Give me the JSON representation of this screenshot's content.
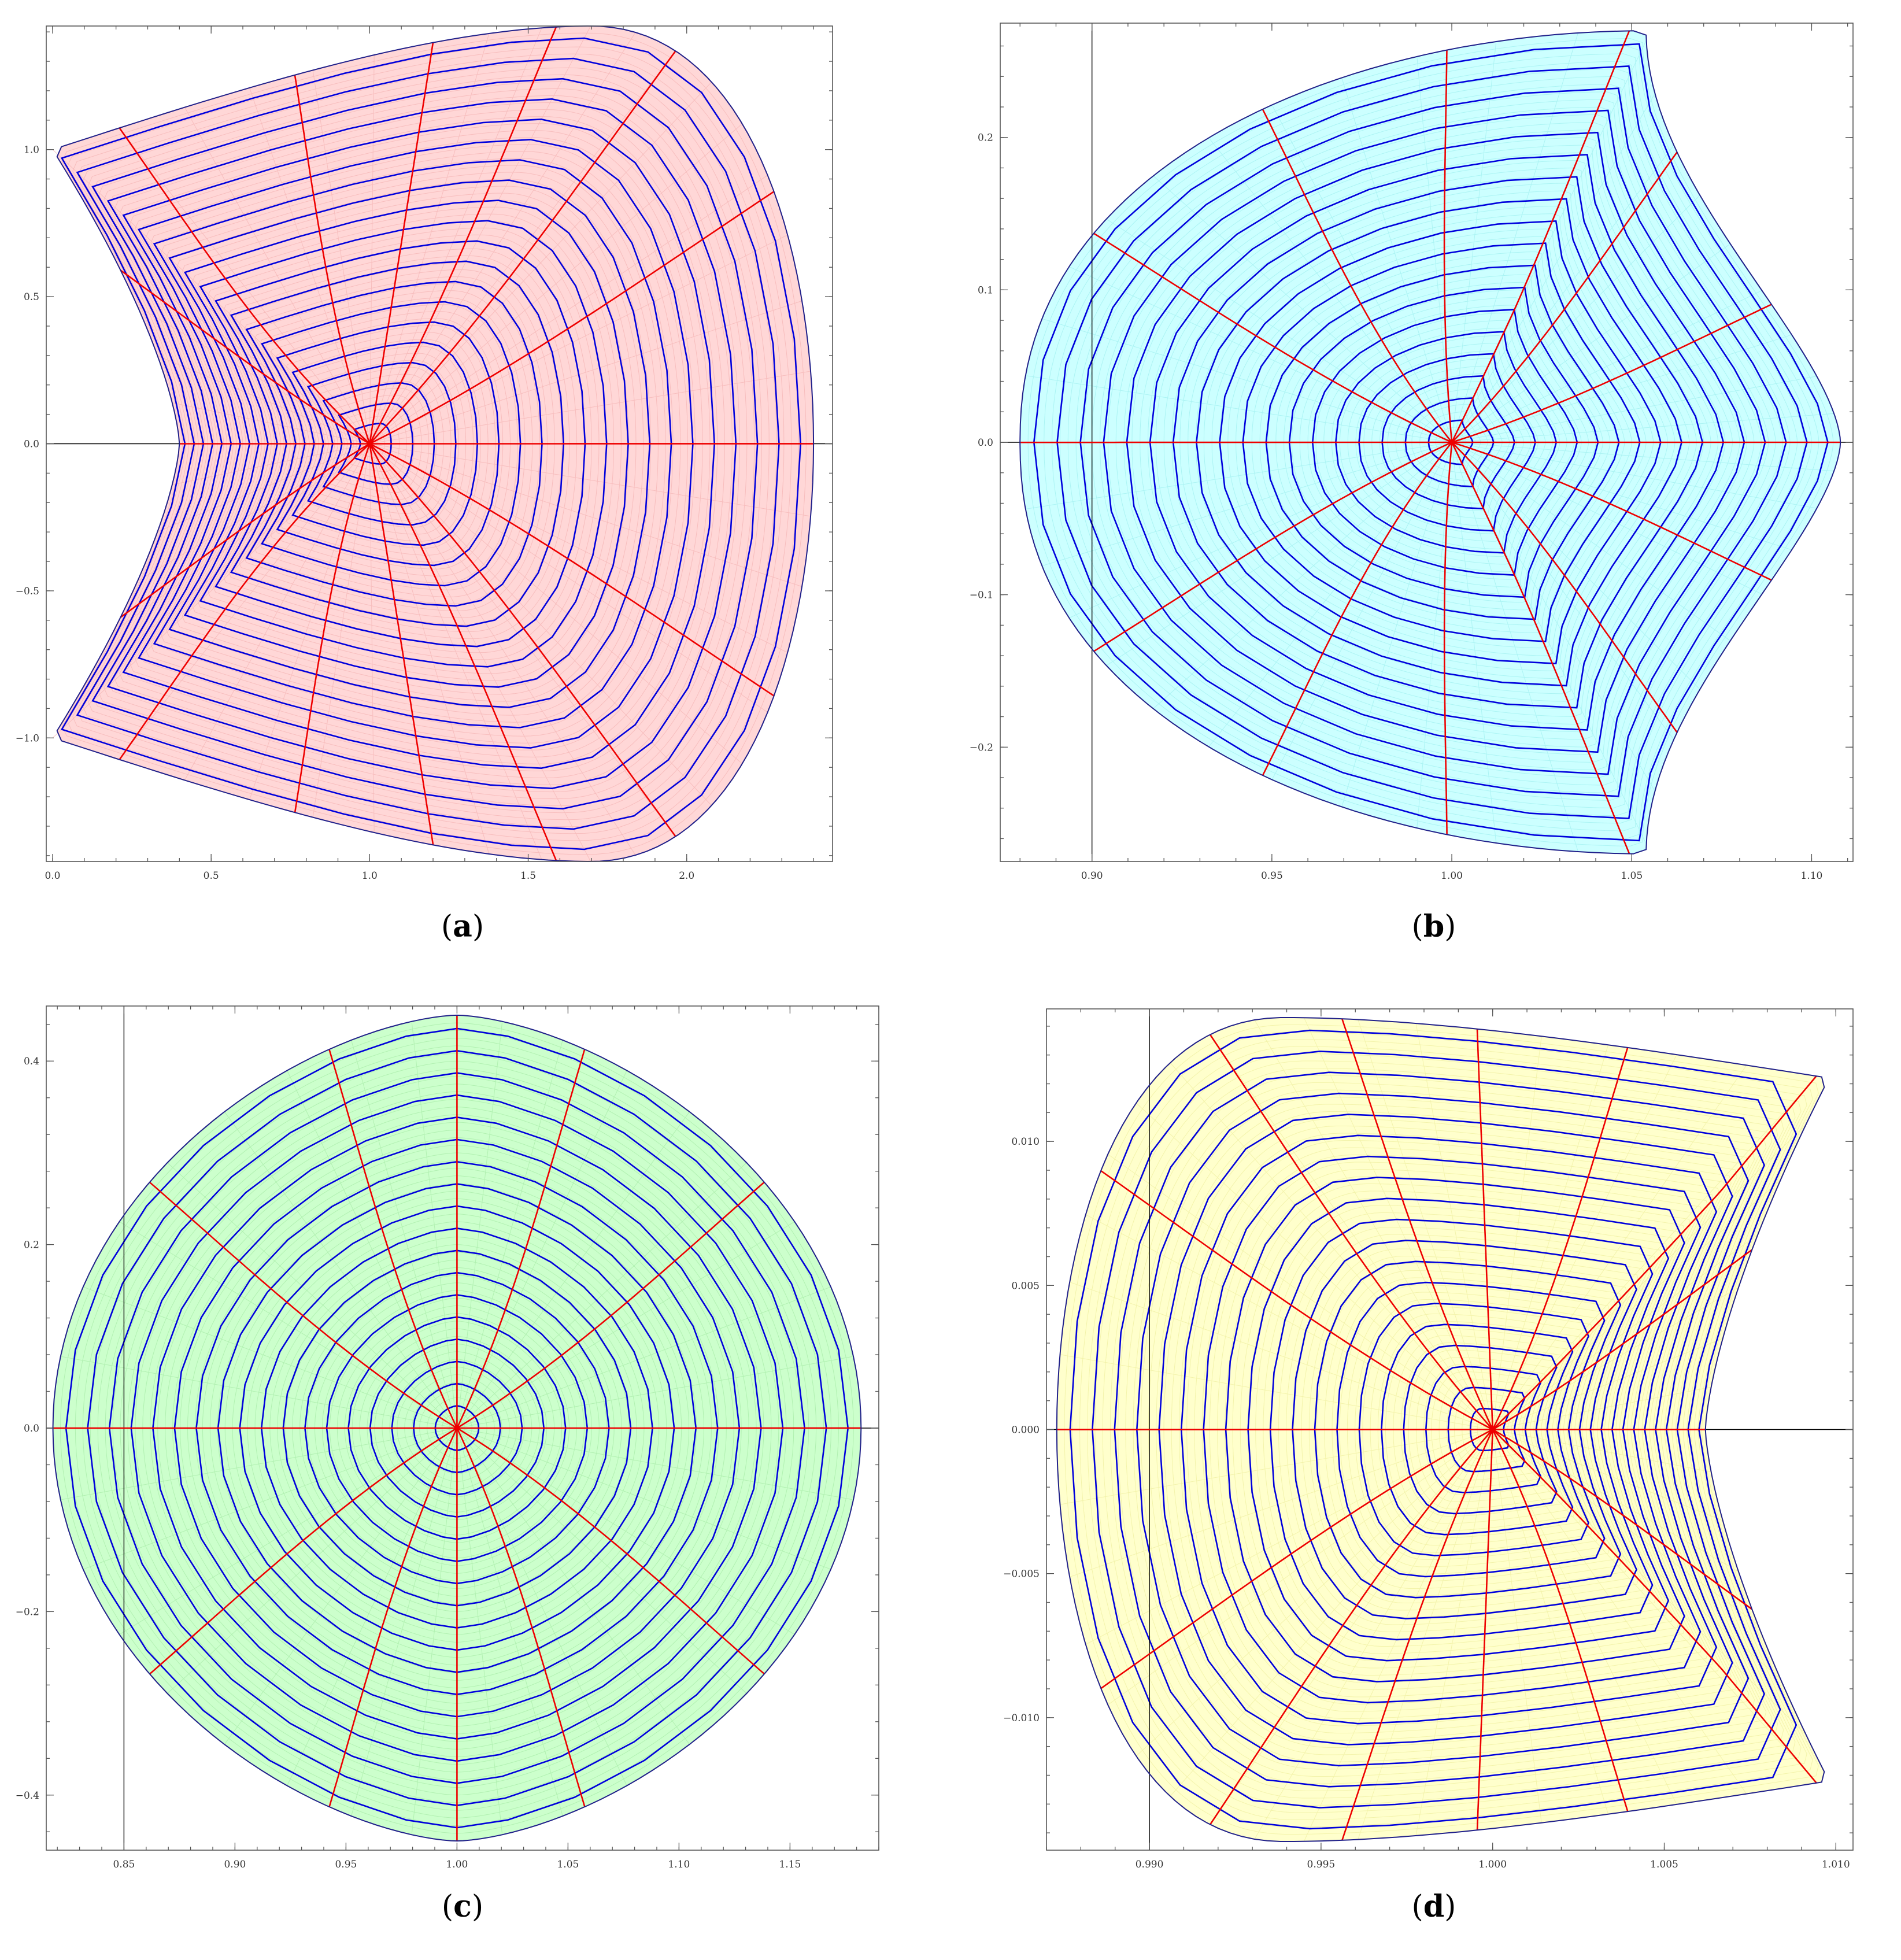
{
  "colors": {
    "frame": "#555555",
    "axis": "#000000",
    "blue_curve": "#0000dd",
    "red_curve": "#ee0000",
    "outline": "#20208a"
  },
  "chart_data": [
    {
      "id": "a",
      "type": "line",
      "caption": {
        "open": "(",
        "letter": "a",
        "close": ")"
      },
      "fill": "#ffd7d7",
      "faint_mesh": "#f4b3b3",
      "xlim": [
        -0.02,
        2.46
      ],
      "ylim": [
        -1.42,
        1.42
      ],
      "x_ticks": [
        0,
        0.5,
        1,
        1.5,
        2
      ],
      "x_tick_labels": [
        "0.0",
        "0.5",
        "1.0",
        "1.5",
        "2.0"
      ],
      "y_ticks": [
        -1,
        -0.5,
        0,
        0.5,
        1
      ],
      "y_tick_labels": [
        "−1.0",
        "−0.5",
        "0.0",
        "0.5",
        "1.0"
      ],
      "y_axis_at": null,
      "shape": "crescent-left",
      "center": [
        1.0,
        0.0
      ],
      "right_x": 2.4,
      "notch_x": 0.4,
      "half_height": 1.42,
      "tips": [
        [
          0.0,
          1.0
        ],
        [
          0.0,
          -1.0
        ]
      ],
      "tip_depth": 0.65,
      "blue_levels": 20,
      "red_ray_count": 16
    },
    {
      "id": "b",
      "type": "line",
      "caption": {
        "open": "(",
        "letter": "b",
        "close": ")"
      },
      "fill": "#ccffff",
      "faint_mesh": "#9eefef",
      "xlim": [
        0.8745,
        1.1115
      ],
      "ylim": [
        -0.275,
        0.275
      ],
      "x_ticks": [
        0.9,
        0.95,
        1.0,
        1.05,
        1.1
      ],
      "x_tick_labels": [
        "0.90",
        "0.95",
        "1.00",
        "1.05",
        "1.10"
      ],
      "y_ticks": [
        -0.2,
        -0.1,
        0,
        0.1,
        0.2
      ],
      "y_tick_labels": [
        "−0.2",
        "−0.1",
        "0.0",
        "0.1",
        "0.2"
      ],
      "y_axis_at": 0.9,
      "shape": "wedge-right",
      "center": [
        1.0,
        0.0
      ],
      "left_x": 0.88,
      "right_x": 1.108,
      "half_height": 0.265,
      "tips": [
        [
          1.054,
          0.27
        ],
        [
          1.054,
          -0.27
        ]
      ],
      "tip_depth": 0.32,
      "blue_levels": 18,
      "red_ray_count": 14
    },
    {
      "id": "c",
      "type": "line",
      "caption": {
        "open": "(",
        "letter": "c",
        "close": ")"
      },
      "fill": "#ccffcc",
      "faint_mesh": "#a6eba6",
      "xlim": [
        0.815,
        1.19
      ],
      "ylim": [
        -0.46,
        0.46
      ],
      "x_ticks": [
        0.85,
        0.9,
        0.95,
        1.0,
        1.05,
        1.1,
        1.15
      ],
      "x_tick_labels": [
        "0.85",
        "0.90",
        "0.95",
        "1.00",
        "1.05",
        "1.10",
        "1.15"
      ],
      "y_ticks": [
        -0.4,
        -0.2,
        0,
        0.2,
        0.4
      ],
      "y_tick_labels": [
        "−0.4",
        "−0.2",
        "0.0",
        "0.2",
        "0.4"
      ],
      "y_axis_at": 0.85,
      "shape": "lens",
      "center": [
        1.0,
        0.0
      ],
      "left_x": 0.818,
      "right_x": 1.182,
      "half_height": 0.45,
      "tips": [
        [
          1.0,
          0.45
        ],
        [
          1.0,
          -0.45
        ]
      ],
      "tip_depth": 0.0,
      "blue_levels": 18,
      "red_ray_count": 12
    },
    {
      "id": "d",
      "type": "line",
      "caption": {
        "open": "(",
        "letter": "d",
        "close": ")"
      },
      "fill": "#ffffcc",
      "faint_mesh": "#eeee9e",
      "xlim": [
        0.987,
        1.0105
      ],
      "ylim": [
        -0.0146,
        0.0146
      ],
      "x_ticks": [
        0.99,
        0.995,
        1.0,
        1.005,
        1.01
      ],
      "x_tick_labels": [
        "0.990",
        "0.995",
        "1.000",
        "1.005",
        "1.010"
      ],
      "y_ticks": [
        -0.01,
        -0.005,
        0,
        0.005,
        0.01
      ],
      "y_tick_labels": [
        "−0.010",
        "−0.005",
        "0.000",
        "0.005",
        "0.010"
      ],
      "y_axis_at": 0.99,
      "shape": "crescent-right",
      "center": [
        1.0,
        0.0
      ],
      "left_x": 0.9873,
      "notch_x": 1.0062,
      "half_height": 0.0143,
      "tips": [
        [
          1.0098,
          0.0122
        ],
        [
          1.0098,
          -0.0122
        ]
      ],
      "tip_depth": 0.55,
      "blue_levels": 19,
      "red_ray_count": 16
    }
  ]
}
